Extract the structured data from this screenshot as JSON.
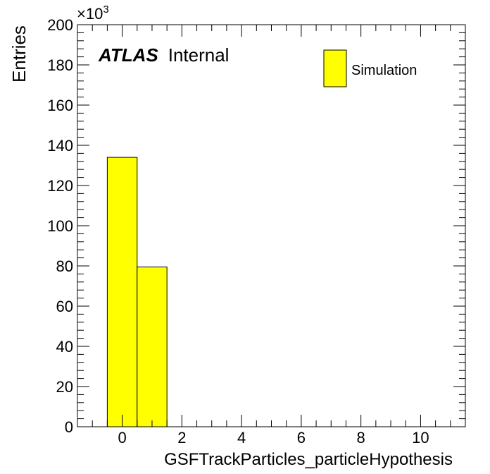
{
  "chart_data": {
    "type": "bar",
    "title": "",
    "xlabel": "GSFTrackParticles_particleHypothesis",
    "ylabel": "Entries",
    "y_multiplier_label": "×10",
    "y_multiplier_exponent": "3",
    "xlim": [
      -1.5,
      11.5
    ],
    "ylim": [
      0,
      200
    ],
    "x_tick_labels": [
      "0",
      "2",
      "4",
      "6",
      "8",
      "10"
    ],
    "y_tick_labels": [
      "0",
      "20",
      "40",
      "60",
      "80",
      "100",
      "120",
      "140",
      "160",
      "180",
      "200"
    ],
    "bins": [
      {
        "low": -0.5,
        "high": 0.5,
        "value": 134
      },
      {
        "low": 0.5,
        "high": 1.5,
        "value": 79.5
      }
    ],
    "bar_color": "#ffff00",
    "grid": false,
    "legend_position": "top-right",
    "series": [
      {
        "name": "Simulation",
        "color": "#ffff00"
      }
    ]
  },
  "atlas_label": {
    "experiment": "ATLAS",
    "status": "Internal"
  }
}
